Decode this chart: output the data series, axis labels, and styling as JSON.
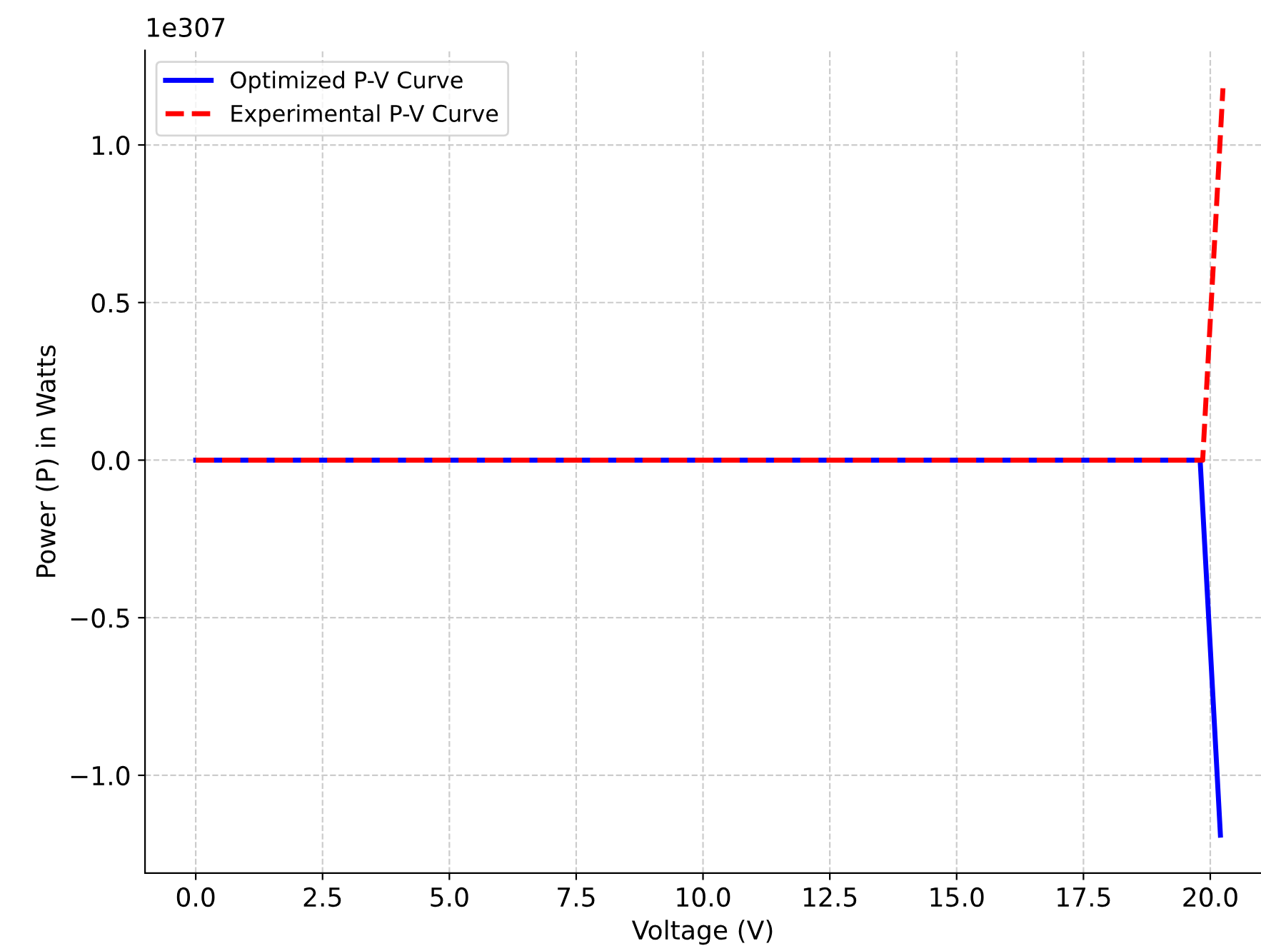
{
  "chart_data": {
    "type": "line",
    "xlabel": "Voltage (V)",
    "ylabel": "Power (P) in Watts",
    "annotations": [
      "1e307"
    ],
    "series": [
      {
        "name": "Optimized P-V Curve",
        "color": "#0000ff",
        "line_style": "solid",
        "x": [
          0,
          19.8,
          20.2
        ],
        "values": [
          0,
          0,
          -1.19
        ]
      },
      {
        "name": "Experimental P-V Curve",
        "color": "#ff0000",
        "line_style": "dashed",
        "x": [
          0,
          19.85,
          20.25
        ],
        "values": [
          0,
          0,
          1.18
        ]
      }
    ],
    "xlim": [
      -1.0,
      21.0
    ],
    "ylim": [
      -1.31,
      1.3
    ],
    "xticks": [
      {
        "value": 0,
        "label": "0.0"
      },
      {
        "value": 2.5,
        "label": "2.5"
      },
      {
        "value": 5,
        "label": "5.0"
      },
      {
        "value": 7.5,
        "label": "7.5"
      },
      {
        "value": 10,
        "label": "10.0"
      },
      {
        "value": 12.5,
        "label": "12.5"
      },
      {
        "value": 15,
        "label": "15.0"
      },
      {
        "value": 17.5,
        "label": "17.5"
      },
      {
        "value": 20,
        "label": "20.0"
      }
    ],
    "yticks": [
      {
        "value": -1,
        "label": "−1.0"
      },
      {
        "value": -0.5,
        "label": "−0.5"
      },
      {
        "value": 0,
        "label": "0.0"
      },
      {
        "value": 0.5,
        "label": "0.5"
      },
      {
        "value": 1,
        "label": "1.0"
      }
    ],
    "grid": true,
    "legend": "top left"
  }
}
